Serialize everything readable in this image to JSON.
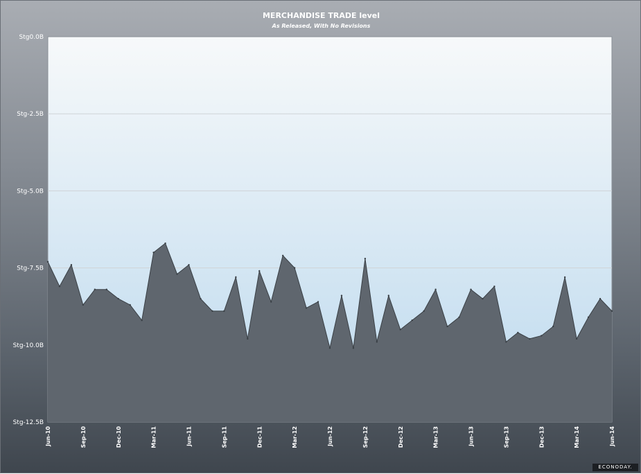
{
  "chart_data": {
    "type": "area",
    "title": "MERCHANDISE TRADE level",
    "subtitle": "As Released, With No Revisions",
    "xlabel": "",
    "ylabel": "",
    "ylim": [
      -12.5,
      0.0
    ],
    "yticks": [
      "Stg0.0B",
      "Stg-2.5B",
      "Stg-5.0B",
      "Stg-7.5B",
      "Stg-10.0B",
      "Stg-12.5B"
    ],
    "ytick_values": [
      0.0,
      -2.5,
      -5.0,
      -7.5,
      -10.0,
      -12.5
    ],
    "xtick_labels": [
      "Jun-10",
      "Sep-10",
      "Dec-10",
      "Mar-11",
      "Jun-11",
      "Sep-11",
      "Dec-11",
      "Mar-12",
      "Jun-12",
      "Sep-12",
      "Dec-12",
      "Mar-13",
      "Jun-13",
      "Sep-13",
      "Dec-13",
      "Mar-14",
      "Jun-14"
    ],
    "x": [
      "Jun-10",
      "Jul-10",
      "Aug-10",
      "Sep-10",
      "Oct-10",
      "Nov-10",
      "Dec-10",
      "Jan-11",
      "Feb-11",
      "Mar-11",
      "Apr-11",
      "May-11",
      "Jun-11",
      "Jul-11",
      "Aug-11",
      "Sep-11",
      "Oct-11",
      "Nov-11",
      "Dec-11",
      "Jan-12",
      "Feb-12",
      "Mar-12",
      "Apr-12",
      "May-12",
      "Jun-12",
      "Jul-12",
      "Aug-12",
      "Sep-12",
      "Oct-12",
      "Nov-12",
      "Dec-12",
      "Jan-13",
      "Feb-13",
      "Mar-13",
      "Apr-13",
      "May-13",
      "Jun-13",
      "Jul-13",
      "Aug-13",
      "Sep-13",
      "Oct-13",
      "Nov-13",
      "Dec-13",
      "Jan-14",
      "Feb-14",
      "Mar-14",
      "Apr-14",
      "May-14",
      "Jun-14"
    ],
    "values": [
      -7.3,
      -8.1,
      -7.4,
      -8.7,
      -8.2,
      -8.2,
      -8.5,
      -8.7,
      -9.2,
      -7.0,
      -6.7,
      -7.7,
      -7.4,
      -8.5,
      -8.9,
      -8.9,
      -7.8,
      -9.8,
      -7.6,
      -8.6,
      -7.1,
      -7.5,
      -8.8,
      -8.6,
      -10.1,
      -8.4,
      -10.1,
      -7.2,
      -9.9,
      -8.4,
      -9.5,
      -9.2,
      -8.9,
      -8.2,
      -9.4,
      -9.1,
      -8.2,
      -8.5,
      -8.1,
      -9.9,
      -9.6,
      -9.8,
      -9.7,
      -9.4,
      -7.8,
      -9.8,
      -9.1,
      -8.5,
      -8.9
    ],
    "grid": true,
    "legend": "none",
    "colors": {
      "plot_top": "#f7f9fa",
      "plot_bottom": "#bcd9ee",
      "fill": "#5f666e",
      "line": "#3a4046",
      "gridline": "#cfd3d7"
    }
  },
  "branding": {
    "logo_text": "ECONODAY."
  }
}
